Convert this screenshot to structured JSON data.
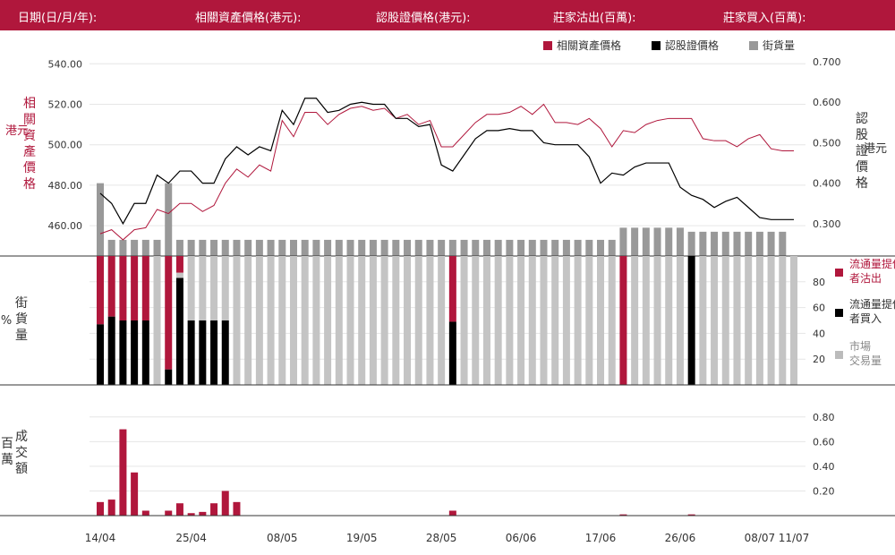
{
  "header": {
    "date_label": "日期(日/月/年):",
    "underlying_label": "相關資產價格(港元):",
    "warrant_label": "認股證價格(港元):",
    "sell_label": "莊家沽出(百萬):",
    "buy_label": "莊家買入(百萬):"
  },
  "legend": {
    "underlying": "相關資產價格",
    "warrant": "認股證價格",
    "outstanding": "街貨量"
  },
  "colors": {
    "brand": "#b0173c",
    "warrant": "#000000",
    "outstanding_dark": "#999999",
    "outstanding_light": "#c4c4c4",
    "grid": "#e6e6e6"
  },
  "chart_data": {
    "type": "line",
    "x": [
      "14/04",
      "15/04",
      "16/04",
      "17/04",
      "18/04",
      "22/04",
      "23/04",
      "24/04",
      "25/04",
      "28/04",
      "29/04",
      "30/04",
      "02/05",
      "05/05",
      "06/05",
      "07/05",
      "08/05",
      "09/05",
      "12/05",
      "13/05",
      "14/05",
      "15/05",
      "16/05",
      "19/05",
      "20/05",
      "21/05",
      "22/05",
      "23/05",
      "26/05",
      "27/05",
      "28/05",
      "29/05",
      "30/05",
      "02/06",
      "03/06",
      "04/06",
      "05/06",
      "06/06",
      "09/06",
      "10/06",
      "11/06",
      "12/06",
      "13/06",
      "16/06",
      "17/06",
      "18/06",
      "19/06",
      "20/06",
      "23/06",
      "24/06",
      "25/06",
      "26/06",
      "27/06",
      "30/06",
      "02/07",
      "03/07",
      "04/07",
      "07/07",
      "08/07",
      "09/07",
      "10/07",
      "11/07"
    ],
    "x_tick_labels": [
      "14/04",
      "25/04",
      "08/05",
      "19/05",
      "28/05",
      "06/06",
      "17/06",
      "26/06",
      "08/07",
      "11/07"
    ],
    "y_axis_left": {
      "label": "相關資產價格\n(港元)",
      "range": [
        445,
        545
      ],
      "ticks": [
        "540.00",
        "520.00",
        "500.00",
        "480.00",
        "460.00"
      ]
    },
    "y_axis_right": {
      "label": "認股證價格\n(港元)",
      "range": [
        0.22,
        0.72
      ],
      "ticks": [
        "0.700",
        "0.600",
        "0.500",
        "0.400",
        "0.300"
      ]
    },
    "series": [
      {
        "name": "相關資產價格",
        "axis": "left",
        "values": [
          456,
          458,
          453,
          458,
          459,
          468,
          466,
          471,
          471,
          467,
          470,
          481,
          488,
          484,
          490,
          487,
          512,
          504,
          516,
          516,
          510,
          515,
          518,
          519,
          517,
          518,
          513,
          515,
          510,
          512,
          499,
          499,
          505,
          511,
          515,
          515,
          516,
          519,
          515,
          520,
          511,
          511,
          510,
          513,
          508,
          499,
          507,
          506,
          510,
          512,
          513,
          513,
          513,
          503,
          502,
          502,
          499,
          503,
          505,
          498,
          497,
          497
        ]
      },
      {
        "name": "認股證價格",
        "axis": "right",
        "values": [
          0.375,
          0.35,
          0.3,
          0.35,
          0.35,
          0.42,
          0.4,
          0.43,
          0.43,
          0.4,
          0.4,
          0.46,
          0.49,
          0.47,
          0.49,
          0.48,
          0.58,
          0.545,
          0.61,
          0.61,
          0.575,
          0.58,
          0.595,
          0.6,
          0.595,
          0.595,
          0.56,
          0.56,
          0.54,
          0.545,
          0.445,
          0.43,
          0.47,
          0.51,
          0.53,
          0.53,
          0.535,
          0.53,
          0.53,
          0.5,
          0.495,
          0.495,
          0.495,
          0.465,
          0.4,
          0.425,
          0.42,
          0.44,
          0.45,
          0.45,
          0.45,
          0.39,
          0.37,
          0.36,
          0.34,
          0.355,
          0.365,
          0.34,
          0.315,
          0.31,
          0.31,
          0.31
        ]
      },
      {
        "name": "街貨量",
        "axis": "right",
        "bar_values": [
          0.4,
          0.26,
          0.26,
          0.26,
          0.26,
          0.26,
          0.4,
          0.26,
          0.26,
          0.26,
          0.26,
          0.26,
          0.26,
          0.26,
          0.26,
          0.26,
          0.26,
          0.26,
          0.26,
          0.26,
          0.26,
          0.26,
          0.26,
          0.26,
          0.26,
          0.26,
          0.26,
          0.26,
          0.26,
          0.26,
          0.26,
          0.26,
          0.26,
          0.26,
          0.26,
          0.26,
          0.26,
          0.26,
          0.26,
          0.26,
          0.26,
          0.26,
          0.26,
          0.26,
          0.26,
          0.26,
          0.29,
          0.29,
          0.29,
          0.29,
          0.29,
          0.29,
          0.28,
          0.28,
          0.28,
          0.28,
          0.28,
          0.28,
          0.28,
          0.28,
          0.28,
          null
        ]
      }
    ],
    "percent_panel": {
      "y_label": "街貨量\n(%)",
      "y_ticks": [
        80,
        60,
        40,
        20
      ],
      "legend": [
        {
          "label": "流通量提供者沽出",
          "color": "#b0173c"
        },
        {
          "label": "流通量提供者買入",
          "color": "#000000"
        },
        {
          "label": "市場交易量",
          "color": "#bbbbbb"
        }
      ],
      "sell_pct": [
        53,
        47,
        50,
        50,
        50,
        0,
        88,
        13,
        0,
        0,
        0,
        0,
        0,
        0,
        0,
        0,
        0,
        0,
        0,
        0,
        0,
        0,
        0,
        0,
        0,
        0,
        0,
        0,
        0,
        0,
        0,
        51,
        0,
        0,
        0,
        0,
        0,
        0,
        0,
        0,
        0,
        0,
        0,
        0,
        0,
        0,
        100,
        0,
        0,
        0,
        0,
        0,
        0,
        0,
        0,
        0,
        0,
        0,
        0,
        0,
        0,
        0
      ],
      "buy_pct": [
        47,
        53,
        50,
        50,
        50,
        0,
        12,
        83,
        50,
        50,
        50,
        50,
        0,
        0,
        0,
        0,
        0,
        0,
        0,
        0,
        0,
        0,
        0,
        0,
        0,
        0,
        0,
        0,
        0,
        0,
        0,
        49,
        0,
        0,
        0,
        0,
        0,
        0,
        0,
        0,
        0,
        0,
        0,
        0,
        0,
        0,
        0,
        0,
        0,
        0,
        0,
        0,
        100,
        0,
        0,
        0,
        0,
        0,
        0,
        0,
        0,
        0
      ]
    },
    "turnover_panel": {
      "y_label": "成交額\n(百萬)",
      "y_ticks": [
        "0.80",
        "0.60",
        "0.40",
        "0.20"
      ],
      "range": [
        0,
        0.9
      ],
      "values": [
        0.11,
        0.13,
        0.7,
        0.35,
        0.04,
        0,
        0.04,
        0.1,
        0.02,
        0.03,
        0.1,
        0.2,
        0.11,
        0,
        0,
        0,
        0,
        0,
        0,
        0,
        0,
        0,
        0,
        0,
        0,
        0,
        0,
        0,
        0,
        0,
        0,
        0.04,
        0,
        0,
        0,
        0,
        0,
        0,
        0,
        0,
        0,
        0,
        0,
        0,
        0,
        0,
        0.01,
        0,
        0,
        0,
        0,
        0,
        0.01,
        0,
        0,
        0,
        0,
        0,
        0,
        0,
        0,
        0
      ]
    }
  }
}
